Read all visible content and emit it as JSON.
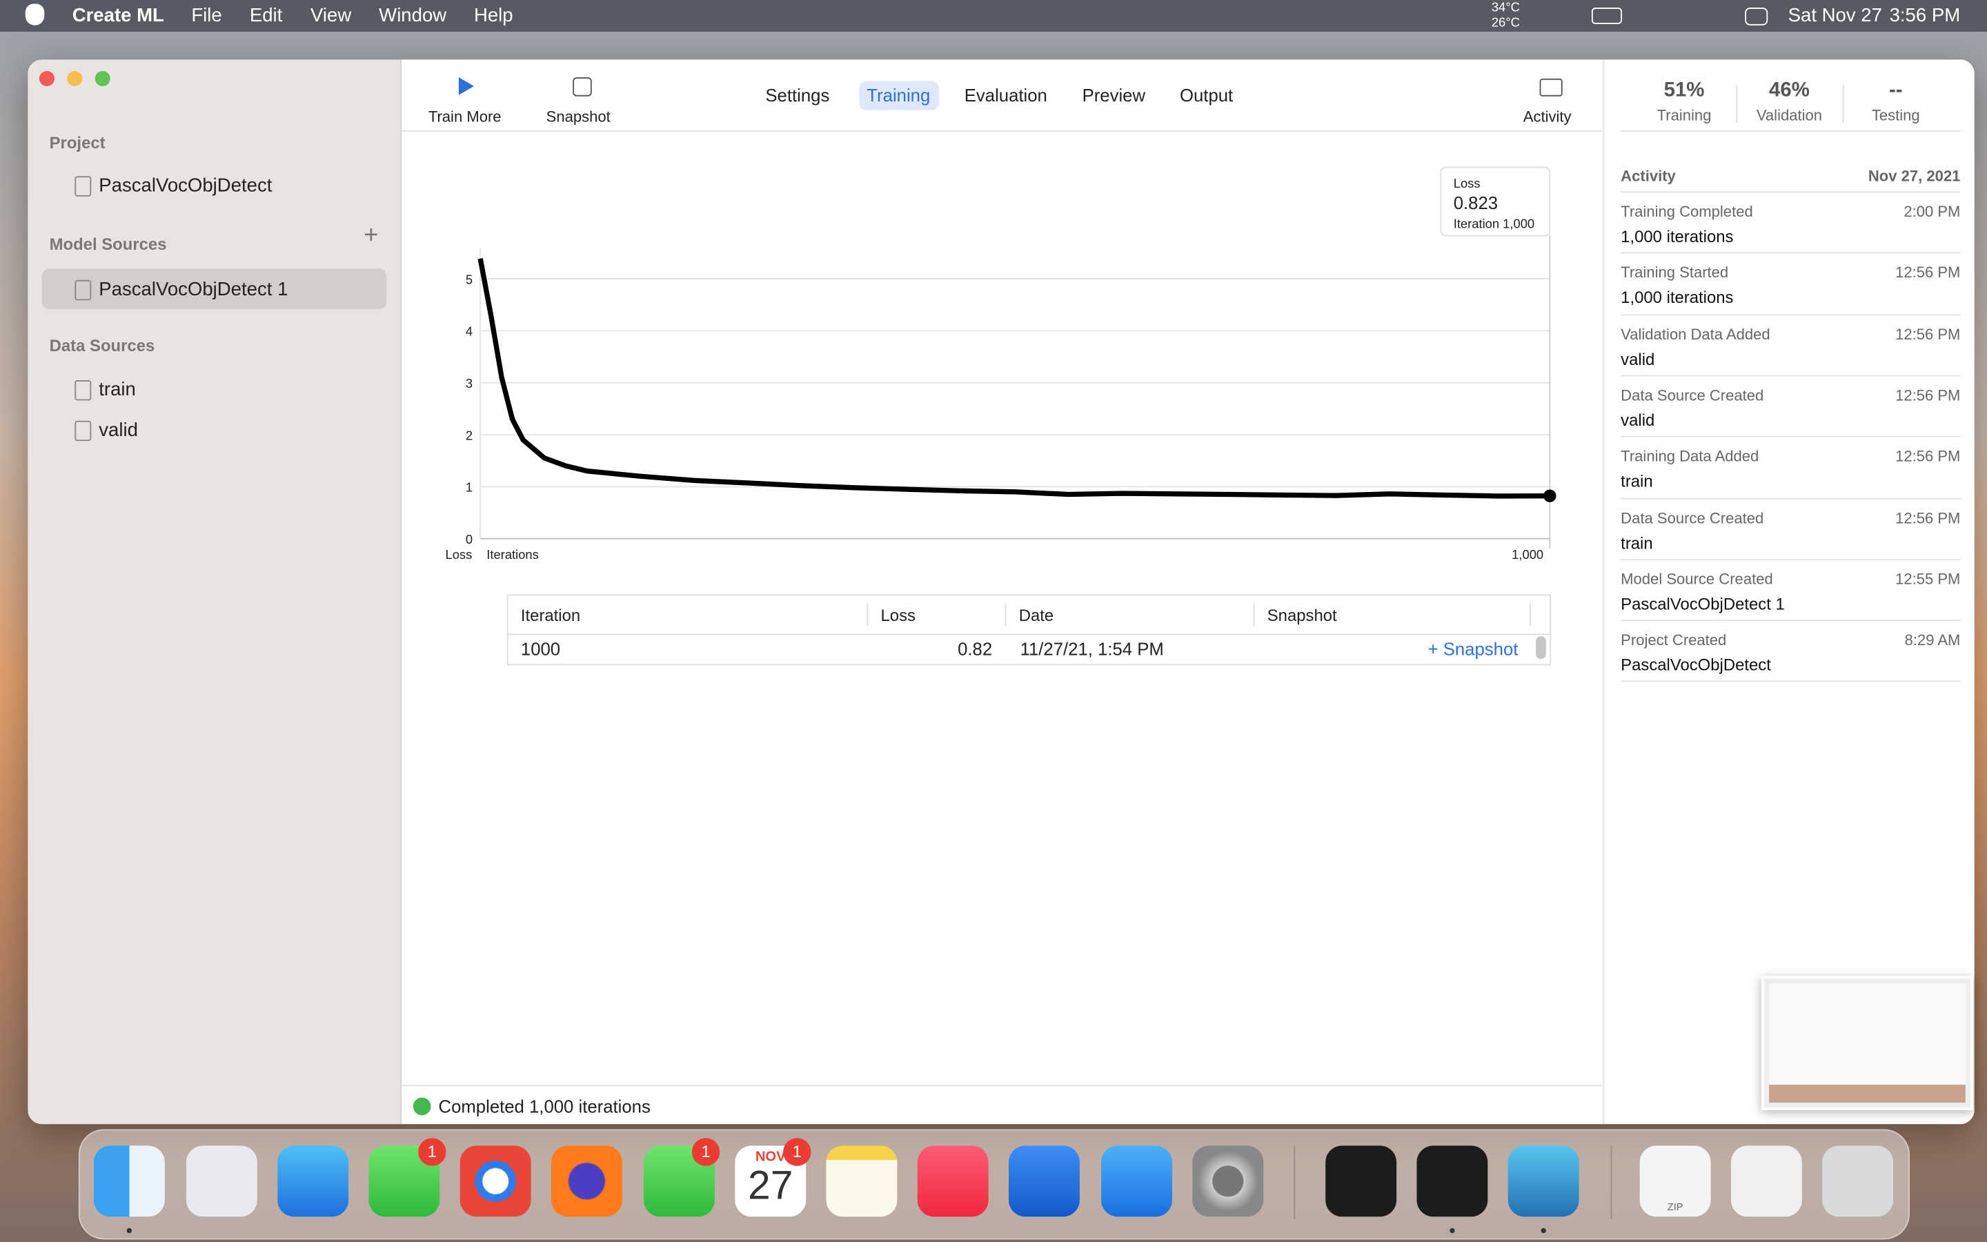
{
  "menu_bar": {
    "app": "Create ML",
    "menus": [
      "File",
      "Edit",
      "View",
      "Window",
      "Help"
    ],
    "temp_high": "34°C",
    "temp_low": "26°C",
    "date": "Sat Nov 27",
    "time": "3:56 PM"
  },
  "sidebar": {
    "sections": [
      {
        "title": "Project",
        "items": [
          "PascalVocObjDetect"
        ]
      },
      {
        "title": "Model Sources",
        "items": [
          "PascalVocObjDetect 1"
        ]
      },
      {
        "title": "Data Sources",
        "items": [
          "train",
          "valid"
        ]
      }
    ]
  },
  "toolbar": {
    "left": [
      "Train More",
      "Snapshot"
    ],
    "tabs": [
      "Settings",
      "Training",
      "Evaluation",
      "Preview",
      "Output"
    ],
    "right": "Activity"
  },
  "chart_data": {
    "type": "line",
    "x_label": "Iterations",
    "y_label": "Loss",
    "x": [
      0,
      10,
      20,
      30,
      40,
      60,
      80,
      100,
      150,
      200,
      250,
      300,
      350,
      400,
      450,
      500,
      550,
      600,
      650,
      700,
      750,
      800,
      850,
      900,
      950,
      1000
    ],
    "values": [
      5.39,
      4.3,
      3.1,
      2.3,
      1.9,
      1.55,
      1.4,
      1.3,
      1.2,
      1.12,
      1.07,
      1.02,
      0.98,
      0.95,
      0.92,
      0.9,
      0.85,
      0.87,
      0.86,
      0.85,
      0.84,
      0.83,
      0.86,
      0.84,
      0.82,
      0.823
    ],
    "color": "#000000",
    "xlim": [
      0,
      1000
    ],
    "ylim": [
      0,
      5.6
    ],
    "xticks": [
      {
        "value": 1000,
        "label": "1,000"
      }
    ],
    "yticks": [
      0,
      1,
      2,
      3,
      4,
      5
    ],
    "grid": true,
    "tooltip": {
      "title": "Loss",
      "value": "0.823",
      "label": "Iteration 1,000"
    }
  },
  "table": {
    "columns": [
      "Iteration",
      "Loss",
      "Date",
      "Snapshot"
    ],
    "rows": [
      [
        "1000",
        "0.82",
        "11/27/21, 1:54 PM",
        "+ Snapshot"
      ]
    ]
  },
  "status": "Completed 1,000 iterations",
  "activity": {
    "stats": [
      {
        "value": "51%",
        "label": "Training"
      },
      {
        "value": "46%",
        "label": "Validation"
      },
      {
        "value": "--",
        "label": "Testing"
      }
    ],
    "title": "Activity",
    "date": "Nov 27, 2021",
    "items": [
      {
        "title": "Training Completed",
        "time": "2:00 PM",
        "detail": "1,000 iterations"
      },
      {
        "title": "Training Started",
        "time": "12:56 PM",
        "detail": "1,000 iterations"
      },
      {
        "title": "Validation Data Added",
        "time": "12:56 PM",
        "detail": "valid"
      },
      {
        "title": "Data Source Created",
        "time": "12:56 PM",
        "detail": "valid"
      },
      {
        "title": "Training Data Added",
        "time": "12:56 PM",
        "detail": "train"
      },
      {
        "title": "Data Source Created",
        "time": "12:56 PM",
        "detail": "train"
      },
      {
        "title": "Model Source Created",
        "time": "12:55 PM",
        "detail": "PascalVocObjDetect 1"
      },
      {
        "title": "Project Created",
        "time": "8:29 AM",
        "detail": "PascalVocObjDetect"
      }
    ]
  },
  "dock": {
    "badges": [
      "1",
      "1",
      "1"
    ],
    "calendar_month": "NOV",
    "calendar_day": "27",
    "zip": "ZIP"
  }
}
